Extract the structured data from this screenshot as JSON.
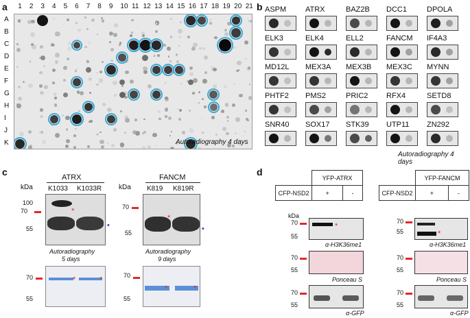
{
  "panel_a": {
    "label": "a",
    "columns": [
      "1",
      "2",
      "3",
      "4",
      "5",
      "6",
      "7",
      "8",
      "9",
      "10",
      "11",
      "12",
      "13",
      "14",
      "15",
      "16",
      "17",
      "18",
      "19",
      "20",
      "21"
    ],
    "rows": [
      "A",
      "B",
      "C",
      "D",
      "E",
      "F",
      "G",
      "H",
      "I",
      "J",
      "K"
    ],
    "caption": "Autoradiography  4 days"
  },
  "panel_b": {
    "label": "b",
    "proteins": [
      "ASPM",
      "ATRX",
      "BAZ2B",
      "DCC1",
      "DPOLA",
      "ELK3",
      "ELK4",
      "ELL2",
      "FANCM",
      "IF4A3",
      "MD12L",
      "MEX3A",
      "MEX3B",
      "MEX3C",
      "MYNN",
      "PHTF2",
      "PMS2",
      "PRIC2",
      "RFX4",
      "SETD8",
      "SNR40",
      "SOX17",
      "STK39",
      "UTP11",
      "ZN292"
    ],
    "caption": "Autoradiography  4 days"
  },
  "panel_c": {
    "label": "c",
    "kda_label": "kDa",
    "left": {
      "title": "ATRX",
      "lanes": [
        "K1033",
        "K1033R"
      ],
      "ticks": [
        "100",
        "70",
        "55"
      ],
      "caption1": "Autoradiography",
      "caption2": "5 days",
      "bottom_ticks": [
        "70",
        "55"
      ]
    },
    "right": {
      "title": "FANCM",
      "lanes": [
        "K819",
        "K819R"
      ],
      "ticks": [
        "70",
        "55"
      ],
      "caption1": "Autoradiography",
      "caption2": "9 days",
      "bottom_ticks": [
        "70",
        "55"
      ]
    },
    "star": "*",
    "dot": "•"
  },
  "panel_d": {
    "label": "d",
    "kda_label": "kDa",
    "left": {
      "header": "YFP-ATRX",
      "row_label": "CFP-NSD2",
      "plus": "+",
      "minus": "-",
      "ticks1": [
        "70",
        "55"
      ],
      "blot1": "α-H3K36me1",
      "ticks2": [
        "70",
        "55"
      ],
      "blot2": "Ponceau S",
      "ticks3": [
        "70",
        "55"
      ],
      "blot3": "α-GFP"
    },
    "right": {
      "header": "YFP-FANCM",
      "row_label": "CFP-NSD2",
      "plus": "+",
      "minus": "-",
      "ticks1": [
        "70",
        "55"
      ],
      "blot1": "α-H3K36me1",
      "ticks2": [
        "70",
        "55"
      ],
      "blot2": "Ponceau S",
      "ticks3": [
        "70",
        "55"
      ],
      "blot3": "α-GFP"
    },
    "star": "*"
  },
  "colors": {
    "highlight_ring": "#3aa9d6",
    "marker_red": "#e3262b",
    "marker_blue": "#1f3fd1",
    "coomassie_band": "#5b8fd8",
    "ponceau": "#f3d5dc"
  }
}
